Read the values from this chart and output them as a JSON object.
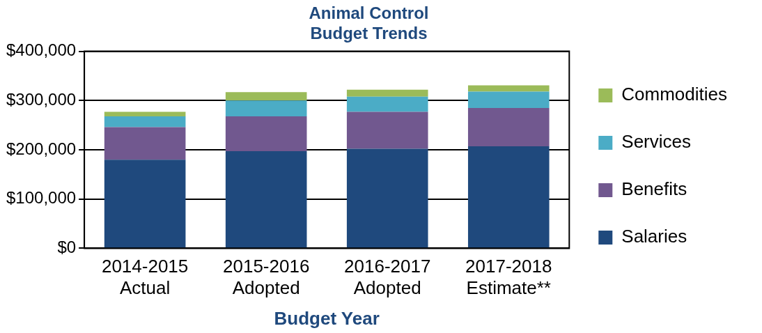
{
  "chart_data": {
    "type": "bar",
    "title": "Animal Control\nBudget Trends",
    "xlabel": "Budget Year",
    "categories": [
      "2014-2015\nActual",
      "2015-2016\nAdopted",
      "2016-2017\nAdopted",
      "2017-2018\nEstimate**"
    ],
    "stacked": true,
    "series": [
      {
        "name": "Salaries",
        "color": "#1f497d",
        "values": [
          180000,
          197000,
          202000,
          207000
        ]
      },
      {
        "name": "Benefits",
        "color": "#71588f",
        "values": [
          66000,
          71000,
          75000,
          78000
        ]
      },
      {
        "name": "Services",
        "color": "#4bacc6",
        "values": [
          22000,
          32000,
          31000,
          33000
        ]
      },
      {
        "name": "Commodities",
        "color": "#9bbb59",
        "values": [
          9000,
          17000,
          14000,
          13000
        ]
      }
    ],
    "ylim": [
      0,
      400000
    ],
    "yticks": [
      {
        "value": 0,
        "label": "$0"
      },
      {
        "value": 100000,
        "label": "$100,000"
      },
      {
        "value": 200000,
        "label": "$200,000"
      },
      {
        "value": 300000,
        "label": "$300,000"
      },
      {
        "value": 400000,
        "label": "$400,000"
      }
    ],
    "grid": "y",
    "legend": "right"
  }
}
